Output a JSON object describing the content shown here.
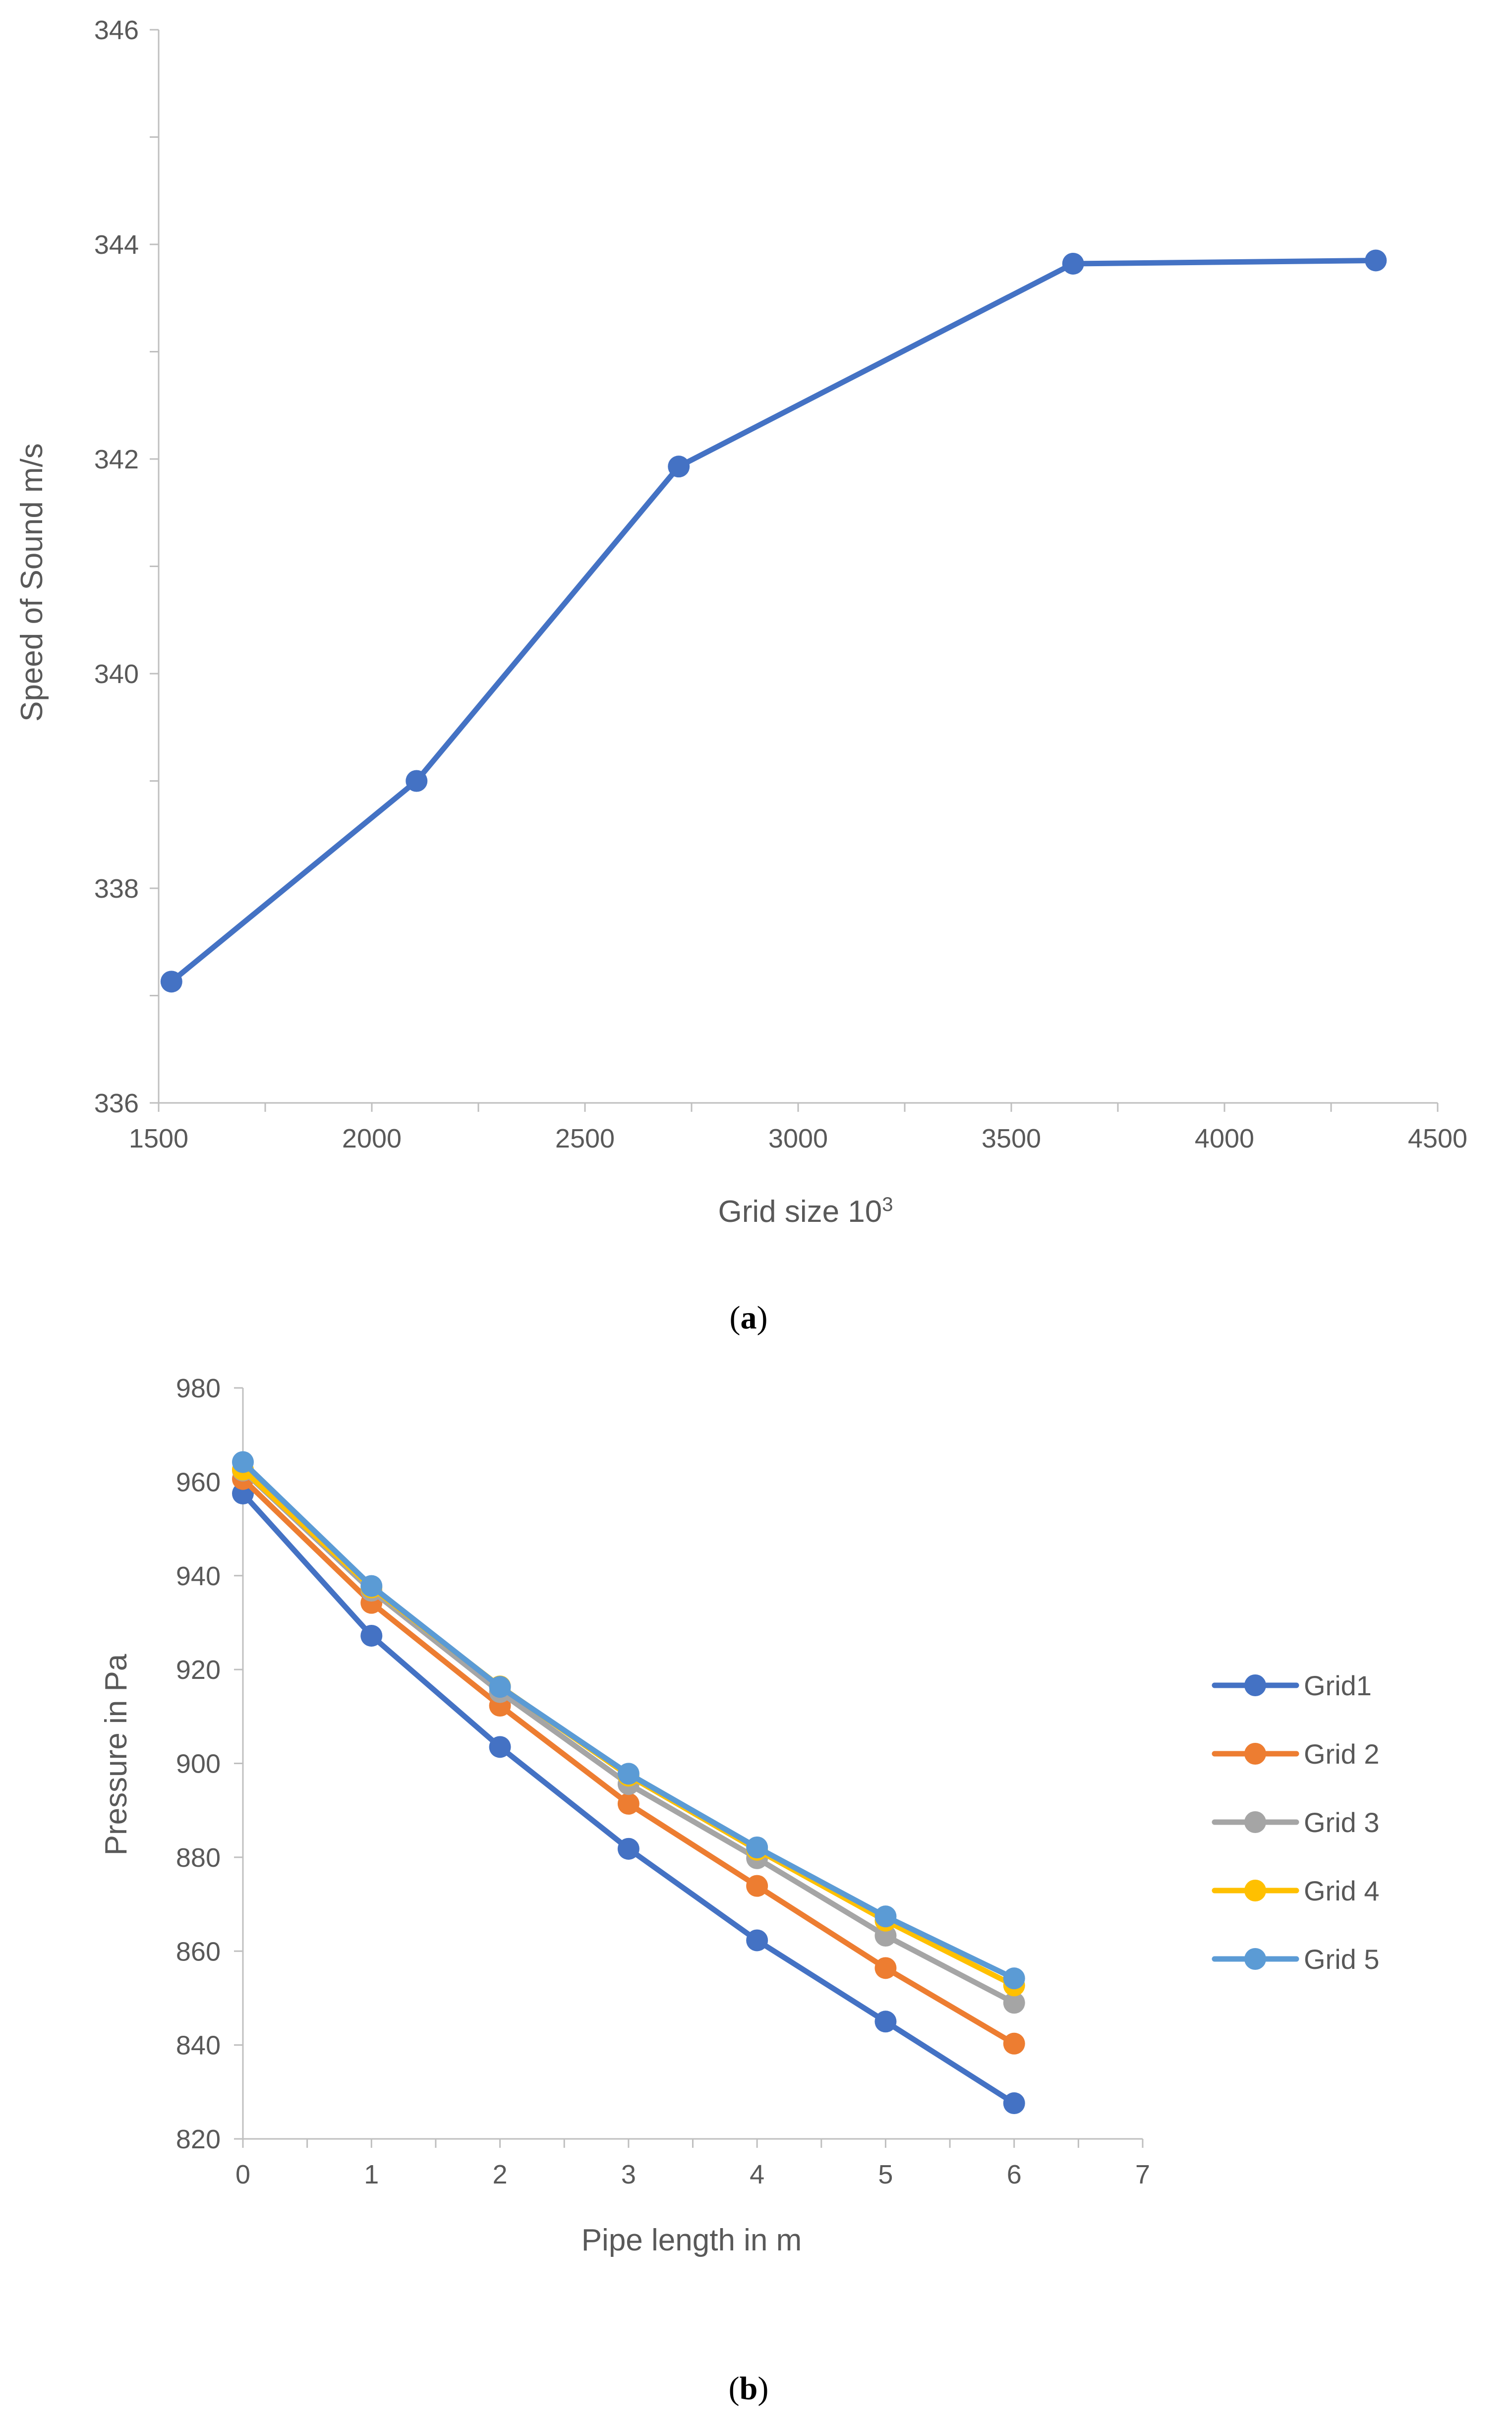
{
  "chart_data": [
    {
      "type": "line",
      "caption_letter": "a",
      "xlabel": "Grid size 10",
      "xlabel_sup": "3",
      "ylabel": "Speed of Sound m/s",
      "xlim": [
        1500,
        4500
      ],
      "ylim": [
        336,
        346
      ],
      "xticks": [
        1500,
        2000,
        2500,
        3000,
        3500,
        4000,
        4500
      ],
      "yticks": [
        336,
        338,
        340,
        342,
        344,
        346
      ],
      "series": [
        {
          "name": "Speed of Sound",
          "color": "#4472C4",
          "x": [
            1530,
            2105,
            2720,
            3645,
            4355
          ],
          "y": [
            337.13,
            339.0,
            341.93,
            343.82,
            343.85
          ]
        }
      ]
    },
    {
      "type": "line",
      "caption_letter": "b",
      "xlabel": "Pipe length in m",
      "ylabel": "Pressure in Pa",
      "xlim": [
        0,
        7
      ],
      "ylim": [
        820,
        980
      ],
      "xticks": [
        0,
        1,
        2,
        3,
        4,
        5,
        6,
        7
      ],
      "yticks": [
        820,
        840,
        860,
        880,
        900,
        920,
        940,
        960,
        980
      ],
      "legend_position": "right",
      "series": [
        {
          "name": "Grid1",
          "color": "#4472C4",
          "x": [
            0,
            1,
            2,
            3,
            4,
            5,
            6
          ],
          "y": [
            957.5,
            927.2,
            903.5,
            881.8,
            862.3,
            845.0,
            827.6
          ]
        },
        {
          "name": "Grid 2",
          "color": "#ED7D31",
          "x": [
            0,
            1,
            2,
            3,
            4,
            5,
            6
          ],
          "y": [
            960.6,
            934.2,
            912.3,
            891.4,
            873.9,
            856.4,
            840.3
          ]
        },
        {
          "name": "Grid 3",
          "color": "#A5A5A5",
          "x": [
            0,
            1,
            2,
            3,
            4,
            5,
            6
          ],
          "y": [
            962.4,
            936.8,
            915.2,
            895.6,
            879.8,
            863.3,
            849.0
          ]
        },
        {
          "name": "Grid 4",
          "color": "#FFC000",
          "x": [
            0,
            1,
            2,
            3,
            4,
            5,
            6
          ],
          "y": [
            962.6,
            937.5,
            916.4,
            897.4,
            881.6,
            866.5,
            852.7
          ]
        },
        {
          "name": "Grid 5",
          "color": "#5B9BD5",
          "x": [
            0,
            1,
            2,
            3,
            4,
            5,
            6
          ],
          "y": [
            964.2,
            937.8,
            916.3,
            897.8,
            882.1,
            867.4,
            854.2
          ]
        }
      ]
    }
  ]
}
